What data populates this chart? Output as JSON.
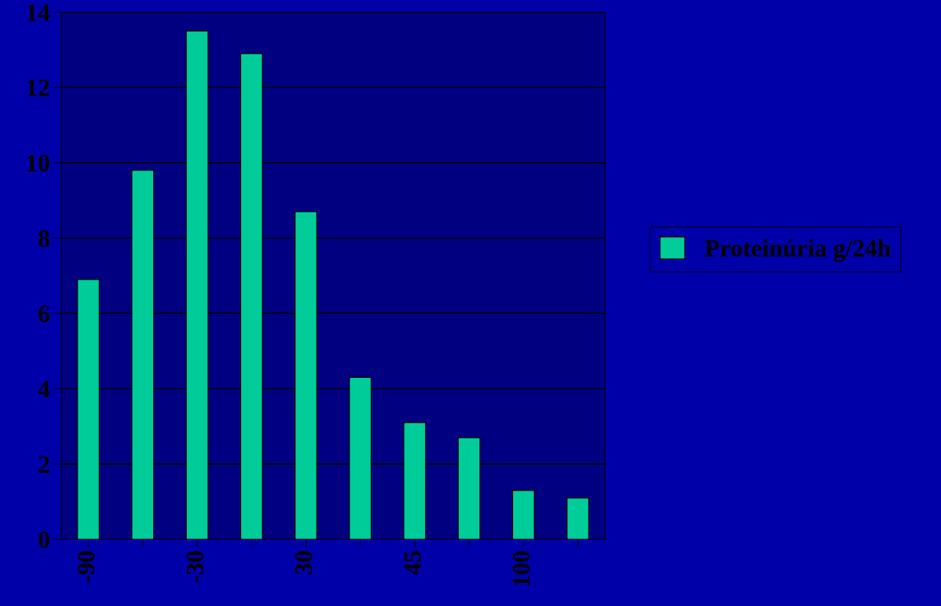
{
  "chart_data": {
    "type": "bar",
    "categories": [
      "-90",
      null,
      "-30",
      null,
      "30",
      null,
      "45",
      null,
      "100",
      null
    ],
    "series": [
      {
        "name": "Proteinúria g/24h",
        "color": "#00cc99",
        "values": [
          6.9,
          9.8,
          13.5,
          12.9,
          8.7,
          4.3,
          3.1,
          2.7,
          1.3,
          1.1
        ]
      }
    ],
    "ylim": [
      0,
      14
    ],
    "yticks": [
      0,
      2,
      4,
      6,
      8,
      10,
      12,
      14
    ],
    "grid": "y",
    "legend": "right"
  }
}
